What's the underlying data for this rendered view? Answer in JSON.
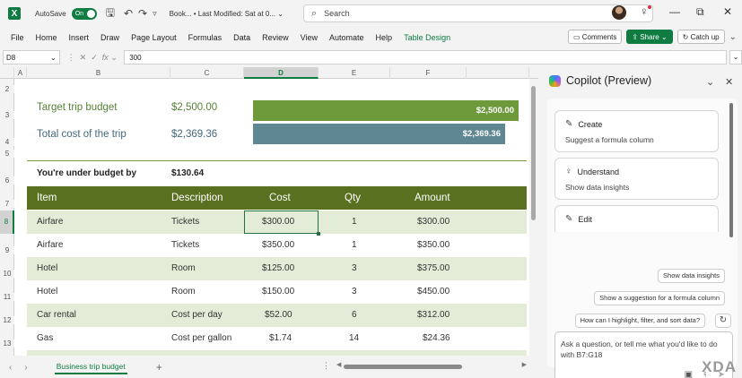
{
  "titlebar": {
    "app_icon": "X",
    "autosave_label": "AutoSave",
    "autosave_state": "On",
    "doc_title": "Book... • Last Modified: Sat at 0... ⌄",
    "search_placeholder": "Search"
  },
  "menu": {
    "items": [
      "File",
      "Home",
      "Insert",
      "Draw",
      "Page Layout",
      "Formulas",
      "Data",
      "Review",
      "View",
      "Automate",
      "Help",
      "Table Design"
    ],
    "comments": "Comments",
    "share": "Share",
    "catch_up": "Catch up"
  },
  "formula_bar": {
    "name_box": "D8",
    "value": "300"
  },
  "columns": [
    "A",
    "B",
    "C",
    "D",
    "E",
    "F"
  ],
  "rows": [
    "2",
    "3",
    "4",
    "5",
    "6",
    "7",
    "8",
    "9",
    "10",
    "11",
    "12",
    "13"
  ],
  "summary": {
    "target_label": "Target trip budget",
    "target_value": "$2,500.00",
    "target_bar_label": "$2,500.00",
    "target_bar_fraction": 1.0,
    "total_label": "Total cost of the trip",
    "total_value": "$2,369.36",
    "total_bar_label": "$2,369.36",
    "total_bar_fraction": 0.948,
    "under_label": "You're under budget by",
    "under_value": "$130.64"
  },
  "table": {
    "headers": [
      "Item",
      "Description",
      "Cost",
      "Qty",
      "Amount"
    ],
    "rows": [
      [
        "Airfare",
        "Tickets",
        "$300.00",
        "1",
        "$300.00"
      ],
      [
        "Airfare",
        "Tickets",
        "$350.00",
        "1",
        "$350.00"
      ],
      [
        "Hotel",
        "Room",
        "$125.00",
        "3",
        "$375.00"
      ],
      [
        "Hotel",
        "Room",
        "$150.00",
        "3",
        "$450.00"
      ],
      [
        "Car rental",
        "Cost per day",
        "$52.00",
        "6",
        "$312.00"
      ],
      [
        "Gas",
        "Cost per gallon",
        "$1.74",
        "14",
        "$24.36"
      ]
    ]
  },
  "sheet_tab": "Business trip budget",
  "copilot": {
    "title": "Copilot (Preview)",
    "cards": [
      {
        "title": "Create",
        "desc": "Suggest a formula column",
        "icon": "pencil-table-icon"
      },
      {
        "title": "Understand",
        "desc": "Show data insights",
        "icon": "lightbulb-icon"
      },
      {
        "title": "Edit",
        "desc": "",
        "icon": "pencil-icon"
      }
    ],
    "suggestions": [
      "Show data insights",
      "Show a suggestion for a formula column",
      "How can I highlight, filter, and sort data?"
    ],
    "ask_placeholder": "Ask a question, or tell me what you'd like to do with B7:G18"
  },
  "watermark": "XDA",
  "colors": {
    "excel_green": "#107c41",
    "target_bar": "#6f9a3c",
    "total_bar": "#5f8792",
    "table_header": "#58701f",
    "table_band": "#e2ecd6"
  }
}
